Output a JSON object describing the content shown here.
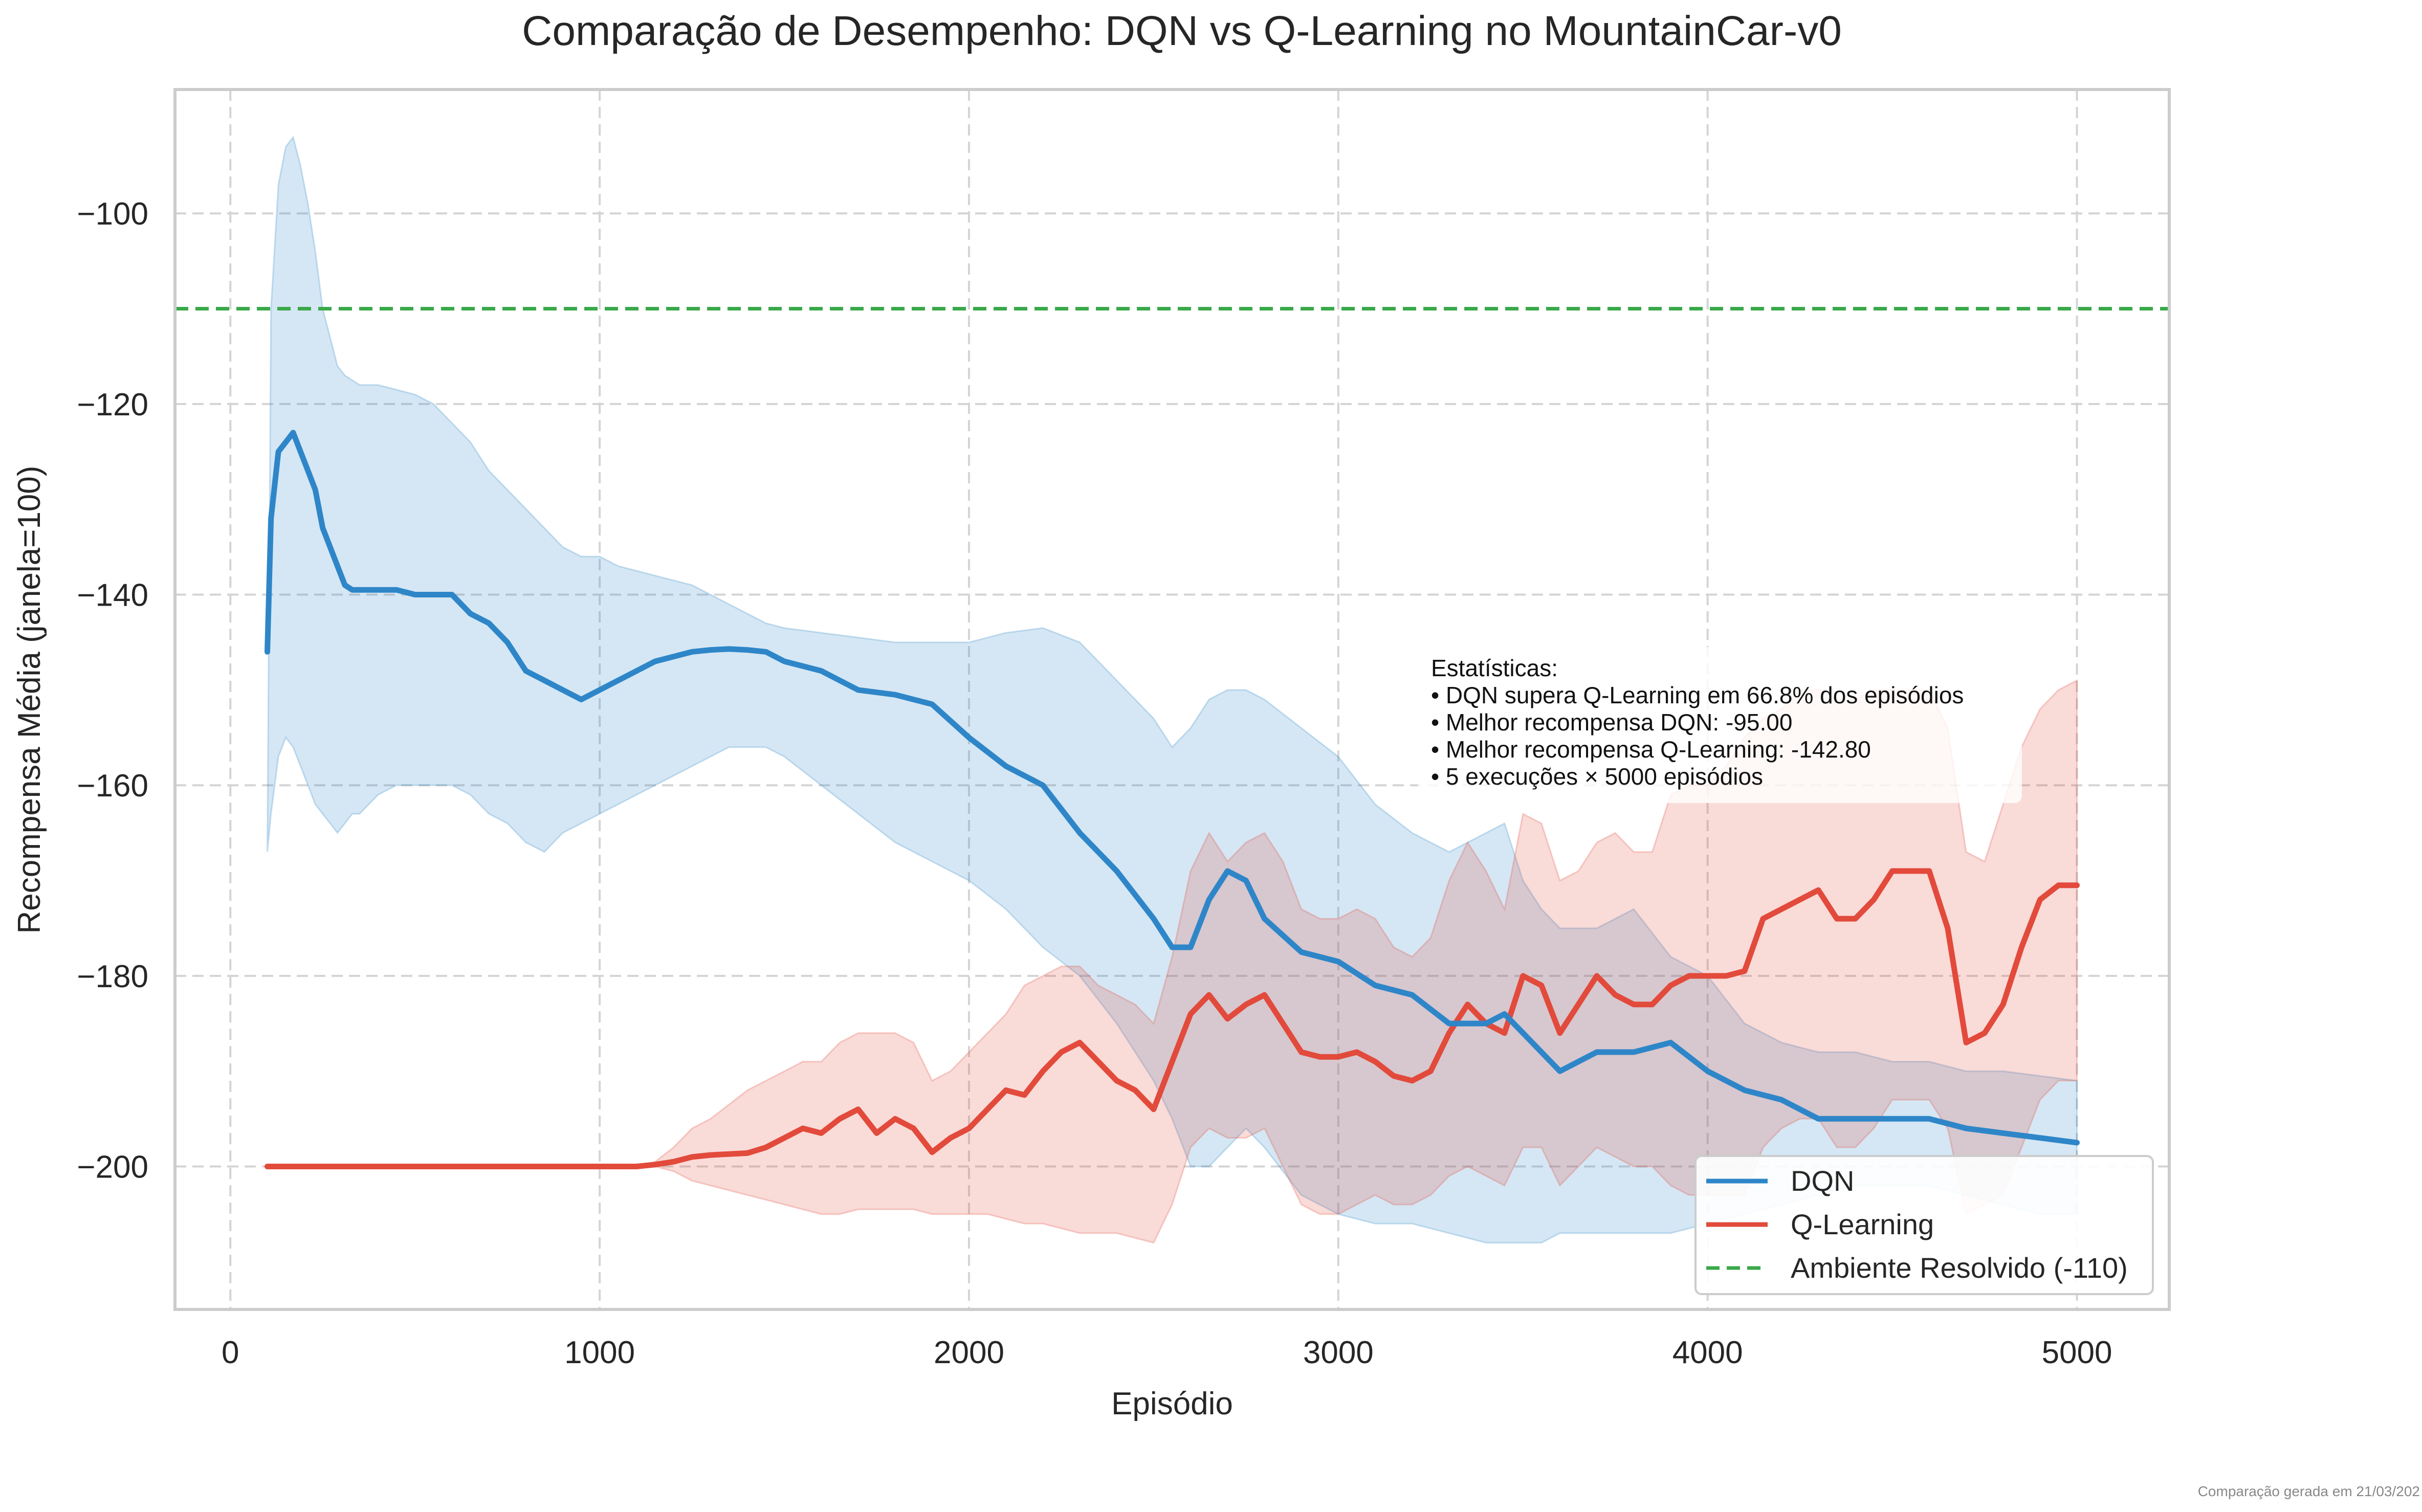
{
  "footer": "Comparação gerada em 21/03/202",
  "colors": {
    "dqn": "#2e86c8",
    "qlearning": "#e24a3b",
    "solved": "#3aa84a",
    "grid": "#d4d4d4",
    "frame": "#cccccc"
  },
  "chart_data": {
    "type": "line",
    "title": "Comparação de Desempenho: DQN vs Q-Learning no MountainCar-v0",
    "xlabel": "Episódio",
    "ylabel": "Recompensa Média (janela=100)",
    "xlim": [
      -150,
      5250
    ],
    "ylim": [
      -215,
      -87
    ],
    "xticks": [
      0,
      1000,
      2000,
      3000,
      4000,
      5000
    ],
    "yticks": [
      -100,
      -120,
      -140,
      -160,
      -180,
      -200
    ],
    "grid": true,
    "legend_position": "lower-right",
    "series": [
      {
        "name": "DQN",
        "color": "#2e86c8",
        "x": [
          100,
          110,
          130,
          150,
          170,
          190,
          210,
          230,
          250,
          270,
          290,
          310,
          330,
          350,
          400,
          450,
          500,
          550,
          600,
          650,
          700,
          750,
          800,
          850,
          900,
          950,
          1000,
          1050,
          1100,
          1150,
          1200,
          1250,
          1300,
          1350,
          1400,
          1450,
          1500,
          1600,
          1700,
          1800,
          1900,
          2000,
          2100,
          2200,
          2300,
          2400,
          2500,
          2550,
          2600,
          2650,
          2700,
          2750,
          2800,
          2900,
          3000,
          3100,
          3200,
          3300,
          3400,
          3450,
          3500,
          3550,
          3600,
          3700,
          3800,
          3900,
          4000,
          4100,
          4200,
          4300,
          4400,
          4500,
          4600,
          4700,
          4800,
          4900,
          5000
        ],
        "y": [
          -146,
          -132,
          -125,
          -124,
          -123,
          -125,
          -127,
          -129,
          -133,
          -135,
          -137,
          -139,
          -139.5,
          -139.5,
          -139.5,
          -139.5,
          -140,
          -140,
          -140,
          -142,
          -143,
          -145,
          -148,
          -149,
          -150,
          -151,
          -150,
          -149,
          -148,
          -147,
          -146.5,
          -146,
          -145.8,
          -145.7,
          -145.8,
          -146,
          -147,
          -148,
          -150,
          -150.5,
          -151.5,
          -155,
          -158,
          -160,
          -165,
          -169,
          -174,
          -177,
          -177,
          -172,
          -169,
          -170,
          -174,
          -177.5,
          -178.5,
          -181,
          -182,
          -185,
          -185,
          -184,
          -186,
          -188,
          -190,
          -188,
          -188,
          -187,
          -190,
          -192,
          -193,
          -195,
          -195,
          -195,
          -195,
          -196,
          -196.5,
          -197,
          -197.5
        ],
        "upper": [
          -167,
          -110,
          -97,
          -93,
          -92,
          -95,
          -99,
          -104,
          -110,
          -113,
          -116,
          -117,
          -117.5,
          -118,
          -118,
          -118.5,
          -119,
          -120,
          -122,
          -124,
          -127,
          -129,
          -131,
          -133,
          -135,
          -136,
          -136,
          -137,
          -137.5,
          -138,
          -138.5,
          -139,
          -140,
          -141,
          -142,
          -143,
          -143.5,
          -144,
          -144.5,
          -145,
          -145,
          -145,
          -144,
          -143.5,
          -145,
          -149,
          -153,
          -156,
          -154,
          -151,
          -150,
          -150,
          -151,
          -154,
          -157,
          -162,
          -165,
          -167,
          -165,
          -164,
          -170,
          -173,
          -175,
          -175,
          -173,
          -178,
          -180,
          -185,
          -187,
          -188,
          -188,
          -189,
          -189,
          -190,
          -190,
          -190.5,
          -191
        ],
        "lower": [
          -167,
          -163,
          -157,
          -155,
          -156,
          -158,
          -160,
          -162,
          -163,
          -164,
          -165,
          -164,
          -163,
          -163,
          -161,
          -160,
          -160,
          -160,
          -160,
          -161,
          -163,
          -164,
          -166,
          -167,
          -165,
          -164,
          -163,
          -162,
          -161,
          -160,
          -159,
          -158,
          -157,
          -156,
          -156,
          -156,
          -157,
          -160,
          -163,
          -166,
          -168,
          -170,
          -173,
          -177,
          -180,
          -185,
          -191,
          -195,
          -200,
          -200,
          -198,
          -196,
          -198,
          -203,
          -205,
          -206,
          -206,
          -207,
          -208,
          -208,
          -208,
          -208,
          -207,
          -207,
          -207,
          -207,
          -206,
          -205,
          -204,
          -203,
          -202,
          -202,
          -202,
          -203,
          -204,
          -205,
          -205
        ]
      },
      {
        "name": "Q-Learning",
        "color": "#e24a3b",
        "x": [
          100,
          200,
          400,
          600,
          800,
          1000,
          1100,
          1150,
          1200,
          1250,
          1300,
          1400,
          1450,
          1500,
          1550,
          1600,
          1650,
          1700,
          1750,
          1800,
          1850,
          1900,
          1950,
          2000,
          2050,
          2100,
          2150,
          2200,
          2250,
          2300,
          2350,
          2400,
          2450,
          2500,
          2550,
          2600,
          2650,
          2700,
          2750,
          2800,
          2850,
          2900,
          2950,
          3000,
          3050,
          3100,
          3150,
          3200,
          3250,
          3300,
          3350,
          3400,
          3450,
          3500,
          3550,
          3600,
          3650,
          3700,
          3750,
          3800,
          3850,
          3900,
          3950,
          4000,
          4050,
          4100,
          4150,
          4200,
          4250,
          4300,
          4350,
          4400,
          4450,
          4500,
          4550,
          4600,
          4650,
          4700,
          4750,
          4800,
          4850,
          4900,
          4950,
          5000
        ],
        "y": [
          -200,
          -200,
          -200,
          -200,
          -200,
          -200,
          -200,
          -199.8,
          -199.5,
          -199,
          -198.8,
          -198.6,
          -198,
          -197,
          -196,
          -196.5,
          -195,
          -194,
          -196.5,
          -195,
          -196,
          -198.5,
          -197,
          -196,
          -194,
          -192,
          -192.5,
          -190,
          -188,
          -187,
          -189,
          -191,
          -192,
          -194,
          -189,
          -184,
          -182,
          -184.5,
          -183,
          -182,
          -185,
          -188,
          -188.5,
          -188.5,
          -188,
          -189,
          -190.5,
          -191,
          -190,
          -186,
          -183,
          -185,
          -186,
          -180,
          -181,
          -186,
          -183,
          -180,
          -182,
          -183,
          -183,
          -181,
          -180,
          -180,
          -180,
          -179.5,
          -174,
          -173,
          -172,
          -171,
          -174,
          -174,
          -172,
          -169,
          -169,
          -169,
          -175,
          -187,
          -186,
          -183,
          -177,
          -172,
          -170.5,
          -170.5
        ],
        "upper": [
          -200,
          -200,
          -200,
          -200,
          -200,
          -200,
          -200,
          -199.5,
          -198,
          -196,
          -195,
          -192,
          -191,
          -190,
          -189,
          -189,
          -187,
          -186,
          -186,
          -186,
          -187,
          -191,
          -190,
          -188,
          -186,
          -184,
          -181,
          -180,
          -179,
          -179,
          -181,
          -182,
          -183,
          -185,
          -178,
          -169,
          -165,
          -168,
          -166,
          -165,
          -168,
          -173,
          -174,
          -174,
          -173,
          -174,
          -177,
          -178,
          -176,
          -170,
          -166,
          -169,
          -173,
          -163,
          -164,
          -170,
          -169,
          -166,
          -165,
          -167,
          -167,
          -161,
          -160,
          -160,
          -158,
          -155,
          -153,
          -152,
          -150,
          -150,
          -151,
          -151,
          -150,
          -150,
          -150,
          -150,
          -154,
          -167,
          -168,
          -162,
          -156,
          -152,
          -150,
          -149
        ],
        "lower": [
          -200,
          -200,
          -200,
          -200,
          -200,
          -200,
          -200,
          -200,
          -200.5,
          -201.5,
          -202,
          -203,
          -203.5,
          -204,
          -204.5,
          -205,
          -205,
          -204.5,
          -204.5,
          -204.5,
          -204.5,
          -205,
          -205,
          -205,
          -205,
          -205.5,
          -206,
          -206,
          -206.5,
          -207,
          -207,
          -207,
          -207.5,
          -208,
          -204,
          -198,
          -196,
          -197,
          -197,
          -196,
          -200,
          -204,
          -205,
          -205,
          -204,
          -203,
          -204,
          -204,
          -203,
          -201,
          -200,
          -201,
          -202,
          -198,
          -198,
          -202,
          -200,
          -198,
          -199,
          -200,
          -200,
          -202,
          -203,
          -203,
          -203,
          -203,
          -198,
          -196,
          -195,
          -195,
          -198,
          -198,
          -196,
          -193,
          -193,
          -193,
          -196,
          -205,
          -204,
          -203,
          -198,
          -193,
          -191,
          -191
        ]
      },
      {
        "name": "Ambiente Resolvido (-110)",
        "color": "#3aa84a",
        "style": "dashed",
        "y_constant": -110
      }
    ],
    "annotation": {
      "lines": [
        "Estatísticas:",
        "• DQN supera Q-Learning em 66.8% dos episódios",
        "• Melhor recompensa DQN: -95.00",
        "• Melhor recompensa Q-Learning: -142.80",
        "• 5 execuções × 5000 episódios"
      ]
    }
  }
}
